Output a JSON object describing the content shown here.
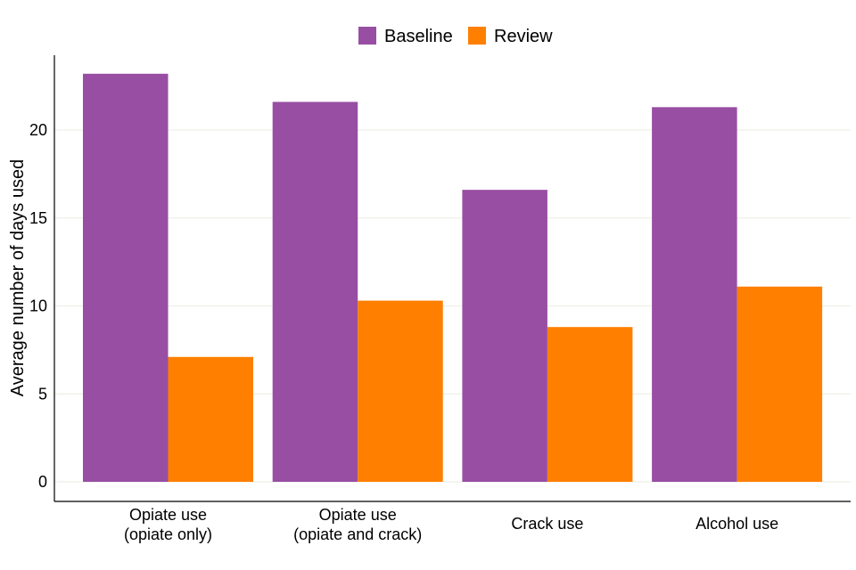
{
  "chart_data": {
    "type": "bar",
    "categories": [
      [
        "Opiate use",
        "(opiate only)"
      ],
      [
        "Opiate use",
        "(opiate and crack)"
      ],
      [
        "Crack use"
      ],
      [
        "Alcohol use"
      ]
    ],
    "series": [
      {
        "name": "Baseline",
        "color": "#984EA3",
        "values": [
          23.2,
          21.6,
          16.6,
          21.3
        ]
      },
      {
        "name": "Review",
        "color": "#FF7F00",
        "values": [
          7.1,
          10.3,
          8.8,
          11.1
        ]
      }
    ],
    "ylabel": "Average number of days used",
    "xlabel": "",
    "ylim": [
      0,
      24
    ],
    "yticks": [
      0,
      5,
      10,
      15,
      20
    ],
    "grid": "horizontal",
    "legend_position": "top-center"
  }
}
